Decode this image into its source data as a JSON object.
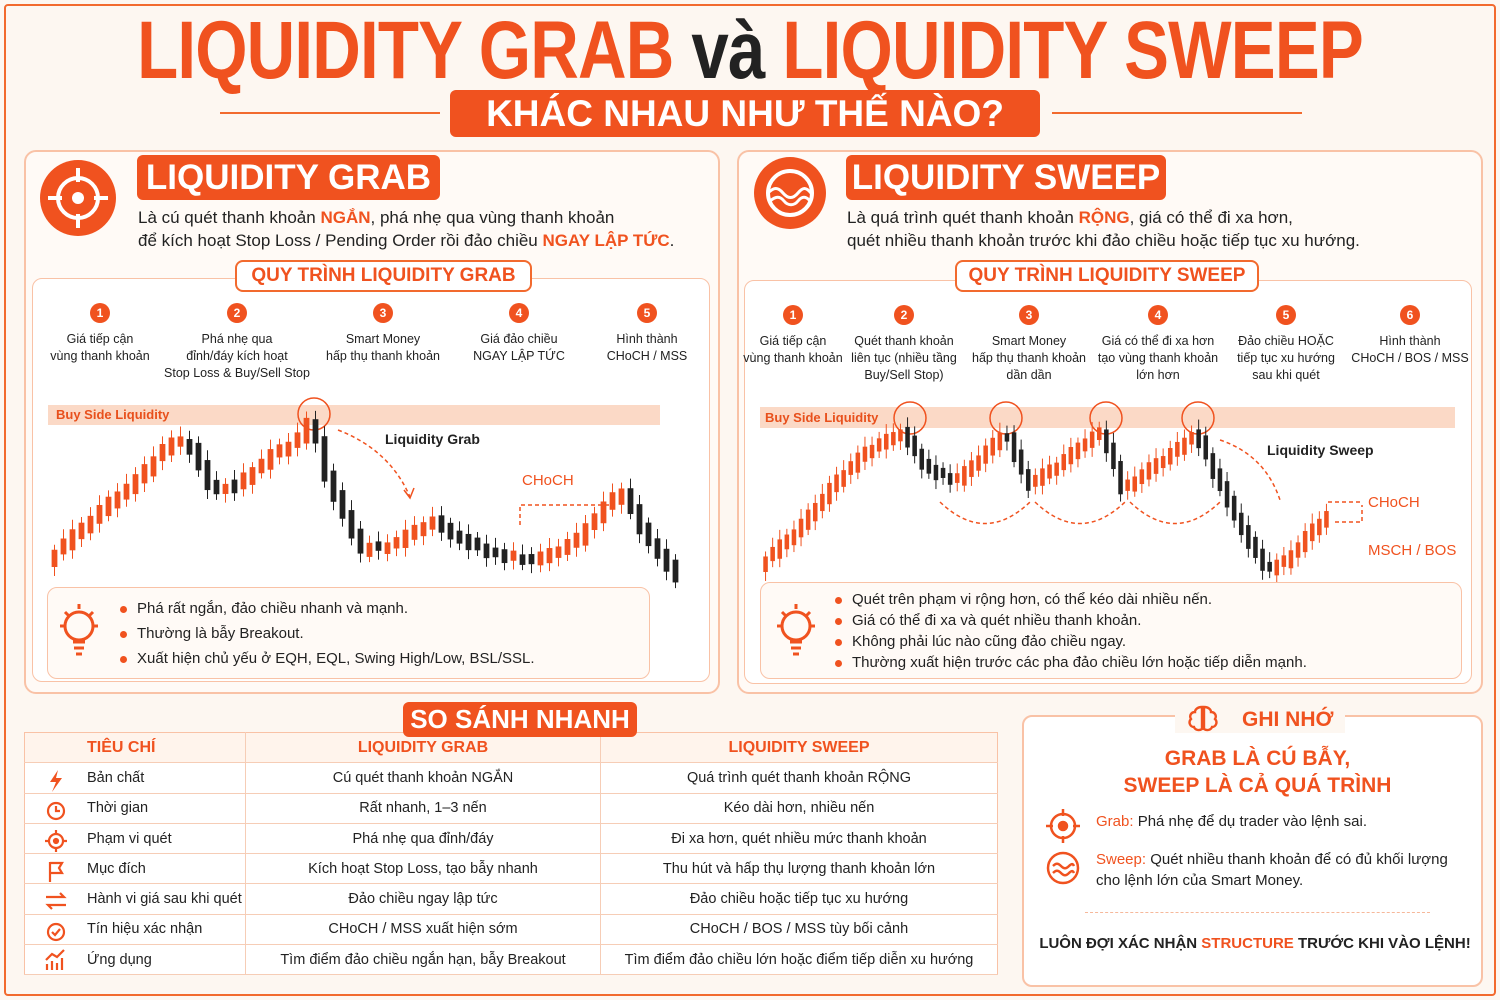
{
  "header": {
    "title_part1": "LIQUIDITY GRAB",
    "title_connector": "và",
    "title_part2": "LIQUIDITY SWEEP",
    "subtitle": "KHÁC NHAU NHƯ THẾ NÀO?"
  },
  "grab": {
    "heading": "LIQUIDITY GRAB",
    "description": [
      [
        {
          "text": "Là cú quét thanh khoản ",
          "emphasis": false
        },
        {
          "text": "NGẮN",
          "emphasis": true
        },
        {
          "text": ", phá nhẹ qua vùng thanh khoản",
          "emphasis": false
        }
      ],
      [
        {
          "text": "để kích hoạt Stop Loss / Pending Order rồi đảo chiều ",
          "emphasis": false
        },
        {
          "text": "NGAY LẬP TỨC",
          "emphasis": true
        },
        {
          "text": ".",
          "emphasis": false
        }
      ]
    ],
    "process_title": "QUY TRÌNH LIQUIDITY GRAB",
    "steps": [
      {
        "number": 1,
        "label": "Giá tiếp cận\nvùng thanh khoản"
      },
      {
        "number": 2,
        "label": "Phá nhẹ qua\nđỉnh/đáy kích hoạt\nStop Loss & Buy/Sell Stop"
      },
      {
        "number": 3,
        "label": "Smart Money\nhấp thụ thanh khoản"
      },
      {
        "number": 4,
        "label": "Giá đảo chiều\nNGAY LẬP TỨC"
      },
      {
        "number": 5,
        "label": "Hình thành\nCHoCH / MSS"
      }
    ],
    "chart_labels": {
      "zone": "Buy Side Liquidity",
      "event": "Liquidity Grab",
      "choch": "CHoCH"
    },
    "notes": [
      "Phá rất ngắn, đảo chiều nhanh và mạnh.",
      "Thường là bẫy Breakout.",
      "Xuất hiện chủ yếu ở EQH, EQL, Swing High/Low, BSL/SSL."
    ]
  },
  "sweep": {
    "heading": "LIQUIDITY SWEEP",
    "description": [
      [
        {
          "text": "Là quá trình quét thanh khoản ",
          "emphasis": false
        },
        {
          "text": "RỘNG",
          "emphasis": true
        },
        {
          "text": ", giá có thể đi xa hơn,",
          "emphasis": false
        }
      ],
      [
        {
          "text": "quét nhiều thanh khoản trước khi đảo chiều hoặc tiếp tục xu hướng.",
          "emphasis": false
        }
      ]
    ],
    "process_title": "QUY TRÌNH LIQUIDITY SWEEP",
    "steps": [
      {
        "number": 1,
        "label": "Giá tiếp cận\nvùng thanh khoản"
      },
      {
        "number": 2,
        "label": "Quét thanh khoản\nliên tục (nhiều tầng\nBuy/Sell Stop)"
      },
      {
        "number": 3,
        "label": "Smart Money\nhấp thụ thanh khoản\ndần dần"
      },
      {
        "number": 4,
        "label": "Giá có thể đi xa hơn\ntạo vùng thanh khoản\nlớn hơn"
      },
      {
        "number": 5,
        "label": "Đảo chiều HOẶC\ntiếp tục xu hướng\nsau khi quét"
      },
      {
        "number": 6,
        "label": "Hình thành\nCHoCH / BOS / MSS"
      }
    ],
    "chart_labels": {
      "zone": "Buy Side Liquidity",
      "event": "Liquidity Sweep",
      "choch": "CHoCH",
      "bos": "MSCH / BOS"
    },
    "notes": [
      "Quét trên phạm vi rộng hơn, có thể kéo dài nhiều nến.",
      "Giá có thể đi xa và quét nhiều thanh khoản.",
      "Không phải lúc nào cũng đảo chiều ngay.",
      "Thường xuất hiện trước các pha đảo chiều lớn hoặc tiếp diễn mạnh."
    ]
  },
  "comparison": {
    "title": "SO SÁNH NHANH",
    "columns": [
      "TIÊU CHÍ",
      "LIQUIDITY GRAB",
      "LIQUIDITY SWEEP"
    ],
    "rows": [
      [
        "Bản chất",
        "Cú quét thanh khoản NGẮN",
        "Quá trình quét thanh khoản RỘNG"
      ],
      [
        "Thời gian",
        "Rất nhanh, 1–3 nến",
        "Kéo dài hơn, nhiều nến"
      ],
      [
        "Phạm vi quét",
        "Phá nhẹ qua đỉnh/đáy",
        "Đi xa hơn, quét nhiều mức thanh khoản"
      ],
      [
        "Mục đích",
        "Kích hoạt Stop Loss, tạo bẫy nhanh",
        "Thu hút và hấp thụ lượng thanh khoản lớn"
      ],
      [
        "Hành vi giá sau khi quét",
        "Đảo chiều ngay lập tức",
        "Đảo chiều hoặc tiếp tục xu hướng"
      ],
      [
        "Tín hiệu xác nhận",
        "CHoCH / MSS xuất hiện sớm",
        "CHoCH / BOS / MSS tùy bối cảnh"
      ],
      [
        "Ứng dụng",
        "Tìm điểm đảo chiều ngắn hạn, bẫy Breakout",
        "Tìm điểm đảo chiều lớn hoặc điểm tiếp diễn xu hướng"
      ]
    ]
  },
  "memo": {
    "title": "GHI NHỚ",
    "headline": [
      "GRAB LÀ CÚ BẪY,",
      "SWEEP LÀ CẢ QUÁ TRÌNH"
    ],
    "items": [
      {
        "label": "Grab:",
        "text": "Phá nhẹ để dụ trader vào lệnh sai."
      },
      {
        "label": "Sweep:",
        "text": "Quét nhiều thanh khoản để có đủ khối lượng cho lệnh lớn của Smart Money."
      }
    ],
    "footer": [
      {
        "text": "LUÔN ĐỢI XÁC NHẬN ",
        "emphasis": false
      },
      {
        "text": "STRUCTURE",
        "emphasis": true
      },
      {
        "text": " TRƯỚC KHI VÀO LỆNH!",
        "emphasis": false
      }
    ]
  }
}
